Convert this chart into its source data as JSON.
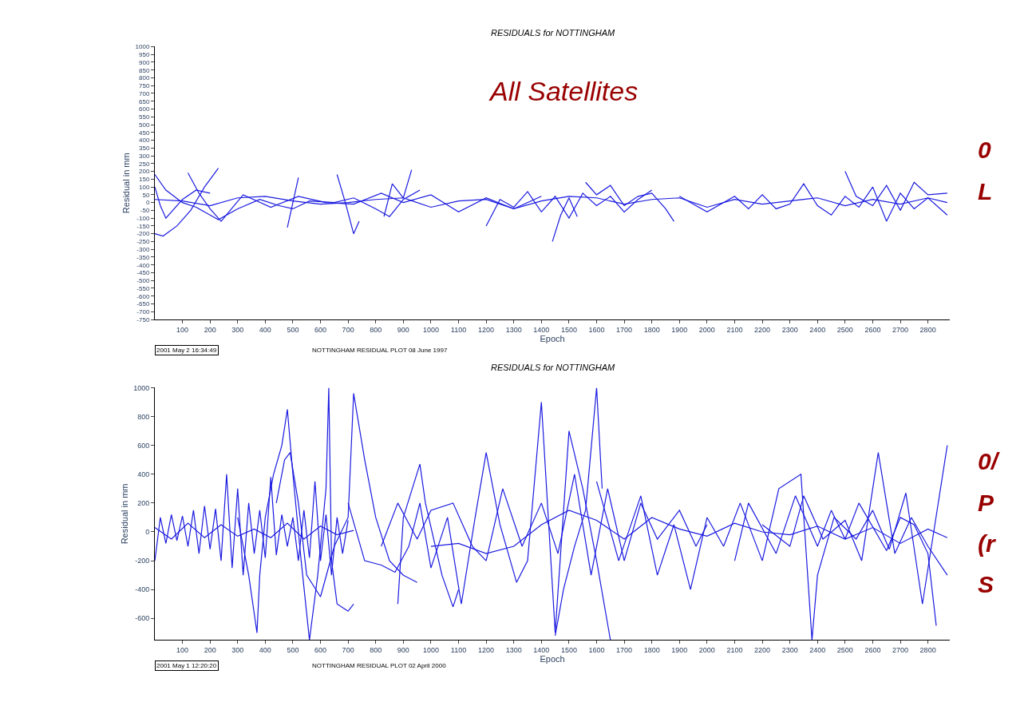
{
  "chart_data": [
    {
      "type": "line",
      "title": "RESIDUALS for NOTTINGHAM",
      "xlabel": "Epoch",
      "ylabel": "Residual in mm",
      "xlim": [
        0,
        2880
      ],
      "ylim": [
        -750,
        1000
      ],
      "xticks": [
        100,
        200,
        300,
        400,
        500,
        600,
        700,
        800,
        900,
        1000,
        1100,
        1200,
        1300,
        1400,
        1500,
        1600,
        1700,
        1800,
        1900,
        2000,
        2100,
        2200,
        2300,
        2400,
        2500,
        2600,
        2700,
        2800
      ],
      "yticks": [
        -750,
        -700,
        -650,
        -600,
        -550,
        -500,
        -450,
        -400,
        -350,
        -300,
        -250,
        -200,
        -150,
        -100,
        -50,
        0,
        50,
        100,
        150,
        200,
        250,
        300,
        350,
        400,
        450,
        500,
        550,
        600,
        650,
        700,
        750,
        800,
        850,
        900,
        950,
        1000
      ],
      "marker": "none",
      "line_style": "solid",
      "annotations": [
        "All Satellites",
        "2001 May 2 16:34:49",
        "NOTTINGHAM RESIDUAL PLOT 08 June 1997",
        "0",
        "L"
      ],
      "series": [
        {
          "color": "#1a1ae0",
          "x": [
            0,
            30,
            80,
            130,
            180,
            230
          ],
          "values": [
            -200,
            -215,
            -150,
            -50,
            100,
            220
          ]
        },
        {
          "color": "#1a1ae0",
          "x": [
            0,
            40,
            100,
            150,
            230,
            300,
            380,
            450,
            500,
            560,
            650,
            720,
            800,
            850,
            900,
            960
          ],
          "values": [
            180,
            80,
            0,
            -30,
            -110,
            -40,
            20,
            -20,
            -40,
            10,
            0,
            30,
            -40,
            -90,
            20,
            80
          ]
        },
        {
          "color": "#1a1ae0",
          "x": [
            0,
            20,
            40,
            100,
            150,
            200
          ],
          "values": [
            100,
            -20,
            -100,
            20,
            80,
            60
          ]
        },
        {
          "color": "#1a1ae0",
          "x": [
            120,
            160,
            200,
            240,
            320,
            420,
            520,
            620,
            720,
            820,
            900,
            1000,
            1100,
            1200,
            1300,
            1400
          ],
          "values": [
            190,
            60,
            -40,
            -120,
            50,
            -30,
            40,
            0,
            -10,
            60,
            0,
            50,
            -60,
            30,
            -40,
            40
          ]
        },
        {
          "color": "#1a1ae0",
          "x": [
            480,
            500,
            520
          ],
          "values": [
            -160,
            0,
            160
          ]
        },
        {
          "color": "#1a1ae0",
          "x": [
            660,
            690,
            720,
            740
          ],
          "values": [
            180,
            0,
            -200,
            -120
          ]
        },
        {
          "color": "#1a1ae0",
          "x": [
            830,
            860,
            900,
            930
          ],
          "values": [
            -90,
            120,
            30,
            210
          ]
        },
        {
          "color": "#1a1ae0",
          "x": [
            0,
            100,
            200,
            300,
            400,
            500,
            600,
            700,
            800,
            900,
            1000,
            1100,
            1200,
            1300,
            1400,
            1500,
            1600,
            1700,
            1800,
            1900,
            2000,
            2100,
            2200,
            2300,
            2400,
            2500,
            2600,
            2700,
            2800,
            2870
          ],
          "values": [
            20,
            10,
            -20,
            30,
            40,
            10,
            -10,
            0,
            20,
            30,
            -30,
            10,
            20,
            -40,
            10,
            40,
            30,
            -10,
            20,
            30,
            -30,
            20,
            -10,
            10,
            30,
            -20,
            20,
            -10,
            30,
            0
          ]
        },
        {
          "color": "#1a1ae0",
          "x": [
            1200,
            1250,
            1300,
            1350,
            1400,
            1450,
            1500,
            1550,
            1600,
            1650,
            1700,
            1750,
            1800
          ],
          "values": [
            -150,
            20,
            -30,
            70,
            -60,
            40,
            -100,
            60,
            -20,
            40,
            -60,
            20,
            80
          ]
        },
        {
          "color": "#1a1ae0",
          "x": [
            1440,
            1470,
            1500,
            1530
          ],
          "values": [
            -250,
            -80,
            30,
            -90
          ]
        },
        {
          "color": "#1a1ae0",
          "x": [
            1560,
            1600,
            1650,
            1700,
            1750,
            1800,
            1850,
            1880
          ],
          "values": [
            130,
            50,
            110,
            -20,
            40,
            60,
            -40,
            -120
          ]
        },
        {
          "color": "#1a1ae0",
          "x": [
            1900,
            2000,
            2100,
            2150,
            2200,
            2250,
            2300,
            2350,
            2400,
            2450,
            2500,
            2550,
            2600,
            2650,
            2700,
            2750,
            2800,
            2870
          ],
          "values": [
            40,
            -60,
            40,
            -40,
            50,
            -40,
            -10,
            120,
            -20,
            -80,
            40,
            -30,
            100,
            -120,
            60,
            -40,
            30,
            -80
          ]
        },
        {
          "color": "#1a1ae0",
          "x": [
            2500,
            2540,
            2600,
            2650,
            2700,
            2750,
            2800,
            2870
          ],
          "values": [
            200,
            40,
            -20,
            110,
            -50,
            130,
            50,
            60
          ]
        }
      ]
    },
    {
      "type": "line",
      "title": "RESIDUALS for NOTTINGHAM",
      "xlabel": "Epoch",
      "ylabel": "Residual in mm",
      "xlim": [
        0,
        2880
      ],
      "ylim": [
        -750,
        1000
      ],
      "xticks": [
        100,
        200,
        300,
        400,
        500,
        600,
        700,
        800,
        900,
        1000,
        1100,
        1200,
        1300,
        1400,
        1500,
        1600,
        1700,
        1800,
        1900,
        2000,
        2100,
        2200,
        2300,
        2400,
        2500,
        2600,
        2700,
        2800
      ],
      "yticks": [
        -600,
        -400,
        -200,
        0,
        200,
        400,
        600,
        800,
        1000
      ],
      "marker": "none",
      "line_style": "solid",
      "annotations": [
        "2001 May 1 12:20:20",
        "NOTTINGHAM RESIDUAL PLOT 02 April 2000",
        "0/",
        "P",
        "(r",
        "S"
      ],
      "series": [
        {
          "color": "#1a1ae0",
          "x": [
            0,
            20,
            40,
            60,
            80,
            100,
            120,
            140,
            160,
            180,
            200,
            220,
            240,
            260,
            280,
            300,
            320,
            340,
            360,
            380,
            400,
            420,
            440,
            460,
            480,
            500,
            520,
            540,
            560,
            580,
            600,
            620,
            640,
            660,
            680,
            700
          ],
          "values": [
            -200,
            100,
            -80,
            120,
            -60,
            110,
            -100,
            150,
            -150,
            180,
            -120,
            160,
            -200,
            400,
            -250,
            300,
            -300,
            200,
            -150,
            150,
            -180,
            380,
            -160,
            120,
            -100,
            100,
            -200,
            150,
            -180,
            350,
            -200,
            120,
            -300,
            100,
            -150,
            80
          ]
        },
        {
          "color": "#1a1ae0",
          "x": [
            0,
            60,
            120,
            180,
            240,
            300,
            360,
            420,
            480,
            540,
            600,
            660,
            720
          ],
          "values": [
            30,
            -50,
            60,
            -40,
            50,
            -30,
            20,
            -40,
            60,
            -50,
            40,
            -20,
            10
          ]
        },
        {
          "color": "#1a1ae0",
          "x": [
            300,
            340,
            370,
            380,
            400,
            430,
            460,
            480,
            500,
            530,
            560,
            590,
            620,
            630,
            640,
            660,
            700,
            720
          ],
          "values": [
            100,
            -300,
            -700,
            -300,
            100,
            400,
            600,
            850,
            400,
            -200,
            -750,
            -300,
            300,
            1000,
            -200,
            -500,
            -550,
            -500
          ]
        },
        {
          "color": "#1a1ae0",
          "x": [
            440,
            470,
            490,
            520,
            550,
            600,
            650,
            700,
            720,
            760,
            800,
            850,
            900,
            950
          ],
          "values": [
            200,
            500,
            550,
            200,
            -300,
            -450,
            -100,
            100,
            960,
            500,
            100,
            -200,
            -300,
            -350
          ]
        },
        {
          "color": "#1a1ae0",
          "x": [
            700,
            760,
            820,
            870,
            920,
            960,
            1000,
            1060,
            1110,
            1160,
            1200,
            1250,
            1310,
            1350,
            1400,
            1450,
            1500,
            1550,
            1600,
            1650
          ],
          "values": [
            200,
            -200,
            -230,
            -280,
            -100,
            200,
            -250,
            100,
            -500,
            100,
            550,
            50,
            -350,
            -200,
            900,
            -700,
            700,
            300,
            -200,
            -750
          ]
        },
        {
          "color": "#1a1ae0",
          "x": [
            820,
            880,
            950,
            1000,
            1080,
            1150,
            1200,
            1260,
            1330,
            1400,
            1460,
            1520,
            1580,
            1640,
            1700,
            1760,
            1820,
            1900,
            1960,
            2000
          ],
          "values": [
            -100,
            200,
            -50,
            150,
            200,
            -100,
            -200,
            300,
            -100,
            200,
            -150,
            400,
            -300,
            300,
            -200,
            200,
            -50,
            150,
            -100,
            50
          ]
        },
        {
          "color": "#1a1ae0",
          "x": [
            880,
            900,
            960,
            980,
            1040,
            1080,
            1100
          ],
          "values": [
            -500,
            100,
            470,
            200,
            -300,
            -520,
            -400
          ]
        },
        {
          "color": "#1a1ae0",
          "x": [
            1000,
            1100,
            1200,
            1300,
            1400,
            1500,
            1600,
            1700,
            1800,
            1900,
            2000,
            2100,
            2200,
            2300,
            2400,
            2500,
            2600,
            2700,
            2800,
            2870
          ],
          "values": [
            -100,
            -80,
            -150,
            -100,
            50,
            150,
            80,
            -50,
            100,
            20,
            -30,
            60,
            0,
            -20,
            40,
            -50,
            30,
            -80,
            20,
            -40
          ]
        },
        {
          "color": "#1a1ae0",
          "x": [
            1450,
            1480,
            1520,
            1560,
            1600,
            1620
          ],
          "values": [
            -720,
            -400,
            -100,
            150,
            1000,
            300
          ]
        },
        {
          "color": "#1a1ae0",
          "x": [
            1600,
            1680,
            1760,
            1820,
            1880,
            1940,
            2000,
            2060,
            2120,
            2200,
            2260,
            2340,
            2380,
            2400,
            2460,
            2540,
            2600,
            2660,
            2720,
            2780,
            2870
          ],
          "values": [
            350,
            -200,
            250,
            -300,
            50,
            -400,
            100,
            -100,
            200,
            -200,
            300,
            400,
            -750,
            -300,
            100,
            -50,
            150,
            -120,
            270,
            -500,
            600
          ]
        },
        {
          "color": "#1a1ae0",
          "x": [
            2200,
            2300,
            2350,
            2420,
            2500,
            2560,
            2620,
            2680,
            2740,
            2800,
            2870
          ],
          "values": [
            50,
            -100,
            250,
            -50,
            80,
            -200,
            550,
            -150,
            100,
            -100,
            -300
          ]
        },
        {
          "color": "#1a1ae0",
          "x": [
            2100,
            2150,
            2250,
            2320,
            2400,
            2450,
            2500,
            2550,
            2650,
            2700,
            2750,
            2800,
            2830
          ],
          "values": [
            -200,
            200,
            -150,
            250,
            -100,
            150,
            -50,
            200,
            -130,
            100,
            50,
            -150,
            -650
          ]
        }
      ]
    }
  ]
}
